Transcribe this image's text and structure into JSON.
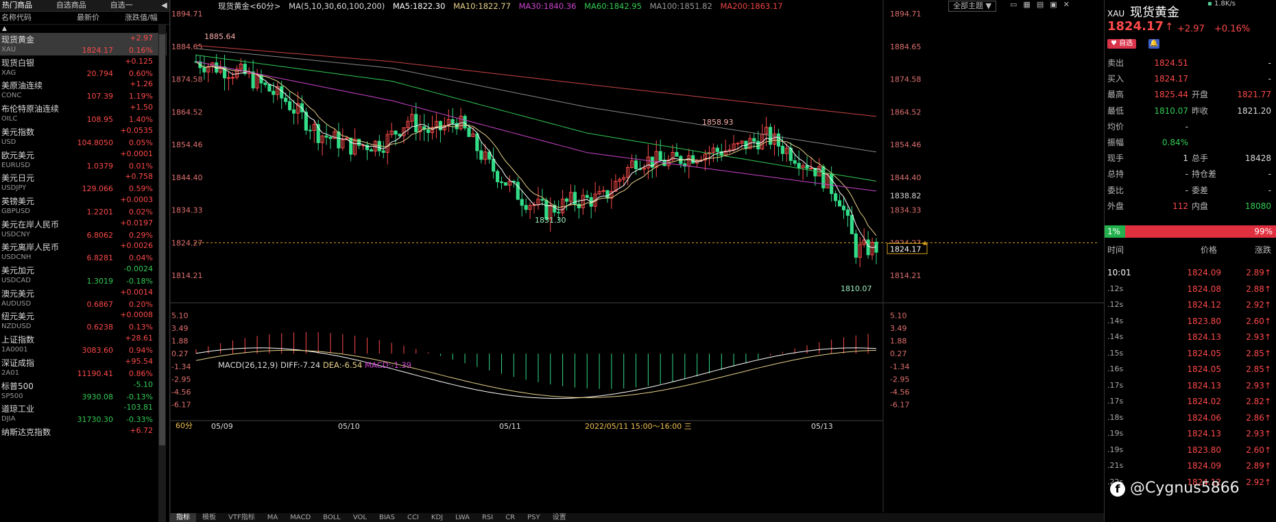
{
  "left": {
    "tabs": [
      "热门商品",
      "自选商品",
      "自选一"
    ],
    "columns": [
      "名称代码",
      "最新价",
      "涨跌值/幅"
    ],
    "collapse": "▲",
    "rows": [
      {
        "name": "现货黄金",
        "code": "XAU",
        "price": "1824.17",
        "chg": "+2.97",
        "pct": "0.16%",
        "dir": "up",
        "sel": true
      },
      {
        "name": "现货白银",
        "code": "XAG",
        "price": "20.794",
        "chg": "+0.125",
        "pct": "0.60%",
        "dir": "up"
      },
      {
        "name": "美原油连续",
        "code": "CONC",
        "price": "107.39",
        "chg": "+1.26",
        "pct": "1.19%",
        "dir": "up"
      },
      {
        "name": "布伦特原油连续",
        "code": "OILC",
        "price": "108.95",
        "chg": "+1.50",
        "pct": "1.40%",
        "dir": "up"
      },
      {
        "name": "美元指数",
        "code": "USD",
        "price": "104.8050",
        "chg": "+0.0535",
        "pct": "0.05%",
        "dir": "up"
      },
      {
        "name": "欧元美元",
        "code": "EURUSD",
        "price": "1.0379",
        "chg": "+0.0001",
        "pct": "0.01%",
        "dir": "up"
      },
      {
        "name": "美元日元",
        "code": "USDJPY",
        "price": "129.066",
        "chg": "+0.758",
        "pct": "0.59%",
        "dir": "up"
      },
      {
        "name": "英镑美元",
        "code": "GBPUSD",
        "price": "1.2201",
        "chg": "+0.0003",
        "pct": "0.02%",
        "dir": "up"
      },
      {
        "name": "美元在岸人民币",
        "code": "USDCNY",
        "price": "6.8062",
        "chg": "+0.0197",
        "pct": "0.29%",
        "dir": "up"
      },
      {
        "name": "美元离岸人民币",
        "code": "USDCNH",
        "price": "6.8281",
        "chg": "+0.0026",
        "pct": "0.04%",
        "dir": "up"
      },
      {
        "name": "美元加元",
        "code": "USDCAD",
        "price": "1.3019",
        "chg": "-0.0024",
        "pct": "-0.18%",
        "dir": "dn"
      },
      {
        "name": "澳元美元",
        "code": "AUDUSD",
        "price": "0.6867",
        "chg": "+0.0014",
        "pct": "0.20%",
        "dir": "up"
      },
      {
        "name": "纽元美元",
        "code": "NZDUSD",
        "price": "0.6238",
        "chg": "+0.0008",
        "pct": "0.13%",
        "dir": "up"
      },
      {
        "name": "上证指数",
        "code": "1A0001",
        "price": "3083.60",
        "chg": "+28.61",
        "pct": "0.94%",
        "dir": "up"
      },
      {
        "name": "深证成指",
        "code": "2A01",
        "price": "11190.41",
        "chg": "+95.54",
        "pct": "0.86%",
        "dir": "up"
      },
      {
        "name": "标普500",
        "code": "SP500",
        "price": "3930.08",
        "chg": "-5.10",
        "pct": "-0.13%",
        "dir": "dn"
      },
      {
        "name": "道琼工业",
        "code": "DJIA",
        "price": "31730.30",
        "chg": "-103.81",
        "pct": "-0.33%",
        "dir": "dn"
      },
      {
        "name": "纳斯达克指数",
        "code": "",
        "price": "",
        "chg": "+6.72",
        "pct": "",
        "dir": "up"
      }
    ]
  },
  "chart": {
    "info": {
      "title": "现货黄金<60分>",
      "ma_label": "MA(5,10,30,60,100,200)",
      "ma5": "MA5:1822.30",
      "ma10": "MA10:1822.77",
      "ma30": "MA30:1840.36",
      "ma60": "MA60:1842.95",
      "ma100": "MA100:1851.82",
      "ma200": "MA200:1863.17"
    },
    "theme_button": "全部主题",
    "price_ticks": [
      "1894.71",
      "1884.65",
      "1874.58",
      "1864.52",
      "1854.46",
      "1844.40",
      "1834.33",
      "1824.27",
      "1814.21"
    ],
    "right_labels": {
      "top": "1838.82",
      "cur": "1824.17",
      "dash": "1824.27"
    },
    "annotations": {
      "high1": "1885.64",
      "low1": "1831.30",
      "high2": "1858.93",
      "low2": "1810.07"
    },
    "macd_info": {
      "label": "MACD(26,12,9)",
      "diff": "DIFF:-7.24",
      "dea": "DEA:-6.54",
      "macd": "MACD:-1.39"
    },
    "macd_ticks": [
      "5.10",
      "3.49",
      "1.88",
      "0.27",
      "-1.34",
      "-2.95",
      "-4.56",
      "-6.17"
    ],
    "period": "60分",
    "dates": [
      "05/09",
      "05/10",
      "05/11",
      "05/13"
    ],
    "crosshair_date": "2022/05/11 15:00～16:00 三",
    "bottom_tabs": [
      "指标",
      "模板",
      "VTF指标",
      "MA",
      "MACD",
      "BOLL",
      "VOL",
      "BIAS",
      "CCI",
      "KDJ",
      "LWA",
      "RSI",
      "CR",
      "PSY",
      "设置"
    ],
    "colors": {
      "up": "#ff4a4a",
      "down": "#33dd88",
      "ma5": "#ffffff",
      "ma10": "#e8d38a",
      "ma30": "#cc44cc",
      "ma60": "#33cc55",
      "ma100": "#888888",
      "ma200": "#cc4444"
    }
  },
  "chart_data": {
    "type": "line",
    "title": "现货黄金<60分>",
    "x": [
      "05/09",
      "05/10",
      "05/11",
      "05/13"
    ],
    "ylim": [
      1806,
      1896
    ],
    "series": [
      {
        "name": "MA30",
        "values": [
          1880,
          1868,
          1852,
          1840
        ]
      },
      {
        "name": "MA60",
        "values": [
          1882,
          1874,
          1858,
          1843
        ]
      },
      {
        "name": "MA100",
        "values": [
          1884,
          1878,
          1866,
          1852
        ]
      },
      {
        "name": "MA200",
        "values": [
          1885,
          1880,
          1873,
          1863
        ]
      }
    ]
  },
  "right": {
    "symbol_code": "XAU",
    "symbol_name": "现货黄金",
    "speed": "1.8K/s",
    "price": "1824.17",
    "arrow": "↑",
    "chg": "+2.97",
    "pct": "+0.16%",
    "fav": "自选",
    "quote": [
      {
        "k": "卖出",
        "v": "1824.51",
        "k2": "",
        "v2": "-",
        "c": "up"
      },
      {
        "k": "买入",
        "v": "1824.17",
        "k2": "",
        "v2": "-",
        "c": "up"
      },
      {
        "k": "最高",
        "v": "1825.44",
        "k2": "开盘",
        "v2": "1821.77",
        "c": "up",
        "c2": "up"
      },
      {
        "k": "最低",
        "v": "1810.07",
        "k2": "昨收",
        "v2": "1821.20",
        "c": "dn",
        "c2": ""
      },
      {
        "k": "均价",
        "v": "-",
        "k2": "",
        "v2": "",
        "c": ""
      },
      {
        "k": "振幅",
        "v": "0.84%",
        "k2": "",
        "v2": "",
        "c": "dn"
      },
      {
        "k": "现手",
        "v": "1",
        "k2": "总手",
        "v2": "18428",
        "c": "",
        "c2": ""
      },
      {
        "k": "总持",
        "v": "-",
        "k2": "持仓差",
        "v2": "-",
        "c": ""
      },
      {
        "k": "委比",
        "v": "-",
        "k2": "委差",
        "v2": "-",
        "c": ""
      },
      {
        "k": "外盘",
        "v": "112",
        "k2": "内盘",
        "v2": "18080",
        "c": "up",
        "c2": "dn"
      }
    ],
    "ratio_left": "1%",
    "ratio_right": "99%",
    "ticks_header": [
      "时间",
      "价格",
      "涨跌"
    ],
    "ticks": [
      {
        "t": "10:01",
        "p": "1824.09",
        "c": "2.89↑"
      },
      {
        "t": ".12s",
        "p": "1824.08",
        "c": "2.88↑"
      },
      {
        "t": ".12s",
        "p": "1824.12",
        "c": "2.92↑"
      },
      {
        "t": ".14s",
        "p": "1823.80",
        "c": "2.60↑"
      },
      {
        "t": ".14s",
        "p": "1824.13",
        "c": "2.93↑"
      },
      {
        "t": ".15s",
        "p": "1824.05",
        "c": "2.85↑"
      },
      {
        "t": ".16s",
        "p": "1824.05",
        "c": "2.85↑"
      },
      {
        "t": ".17s",
        "p": "1824.13",
        "c": "2.93↑"
      },
      {
        "t": ".17s",
        "p": "1824.02",
        "c": "2.82↑"
      },
      {
        "t": ".18s",
        "p": "1824.06",
        "c": "2.86↑"
      },
      {
        "t": ".19s",
        "p": "1824.13",
        "c": "2.93↑"
      },
      {
        "t": ".19s",
        "p": "1823.80",
        "c": "2.60↑"
      },
      {
        "t": ".21s",
        "p": "1824.09",
        "c": "2.89↑"
      },
      {
        "t": ".22s",
        "p": "1824.12",
        "c": "2.92↑"
      }
    ],
    "watermark": "@Cygnus5866"
  }
}
